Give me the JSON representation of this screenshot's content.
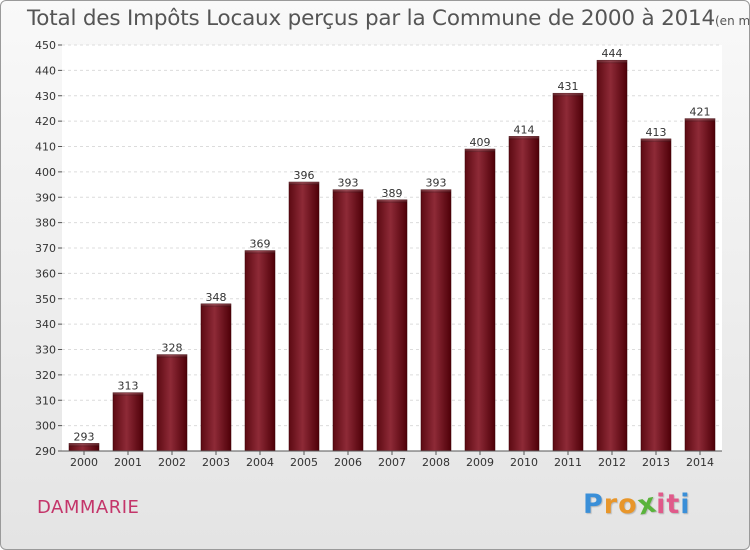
{
  "header": {
    "title": "Total des Impôts Locaux perçus par la Commune de 2000 à 2014",
    "unit": "(en milliers d'€)"
  },
  "footer": {
    "commune": "DAMMARIE",
    "logo_letters": [
      "P",
      "r",
      "o",
      "x",
      "i",
      "t",
      "i"
    ],
    "logo_colors": [
      "#3a8fd8",
      "#e8962a",
      "#e8962a",
      "#5ab33c",
      "#e05a8a",
      "#e05a8a",
      "#3a8fd8"
    ]
  },
  "chart_data": {
    "type": "bar",
    "title": "Total des Impôts Locaux perçus par la Commune de 2000 à 2014",
    "ylabel": "en milliers d'€",
    "xlabel": "",
    "categories": [
      "2000",
      "2001",
      "2002",
      "2003",
      "2004",
      "2005",
      "2006",
      "2007",
      "2008",
      "2009",
      "2010",
      "2011",
      "2012",
      "2013",
      "2014"
    ],
    "values": [
      293,
      313,
      328,
      348,
      369,
      396,
      393,
      389,
      393,
      409,
      414,
      431,
      444,
      413,
      421
    ],
    "ylim": [
      290,
      450
    ],
    "yticks": [
      290,
      300,
      310,
      320,
      330,
      340,
      350,
      360,
      370,
      380,
      390,
      400,
      410,
      420,
      430,
      440,
      450
    ],
    "grid": true,
    "bar_color": "#8a1e2e"
  }
}
